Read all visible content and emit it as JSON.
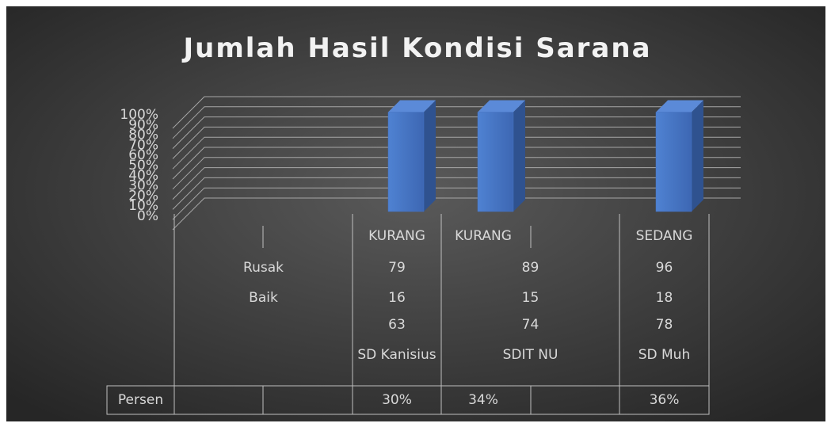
{
  "chart_data": {
    "type": "bar",
    "stacking": "percent",
    "three_d": true,
    "title": "Jumlah Hasil Kondisi Sarana",
    "categories": [
      "SD Kanisius",
      "SDIT NU",
      "SD Muh"
    ],
    "status": [
      "KURANG",
      "KURANG",
      "SEDANG"
    ],
    "ylim": [
      0,
      100
    ],
    "yticks": [
      {
        "value": 0,
        "label": "0%"
      },
      {
        "value": 10,
        "label": "10%"
      },
      {
        "value": 20,
        "label": "20%"
      },
      {
        "value": 30,
        "label": "30%"
      },
      {
        "value": 40,
        "label": "40%"
      },
      {
        "value": 50,
        "label": "50%"
      },
      {
        "value": 60,
        "label": "60%"
      },
      {
        "value": 70,
        "label": "70%"
      },
      {
        "value": 80,
        "label": "80%"
      },
      {
        "value": 90,
        "label": "90%"
      },
      {
        "value": 100,
        "label": "100%"
      }
    ],
    "grid": true,
    "series": [
      {
        "values": [
          79,
          89,
          96
        ]
      },
      {
        "name": "Rusak",
        "values": [
          16,
          15,
          18
        ]
      },
      {
        "name": "Baik",
        "values": [
          63,
          74,
          78
        ]
      },
      {
        "name": "Persen",
        "values": [
          30,
          34,
          36
        ],
        "value_labels": [
          "30%",
          "34%",
          "36%"
        ],
        "color": "#4472c4"
      }
    ]
  }
}
